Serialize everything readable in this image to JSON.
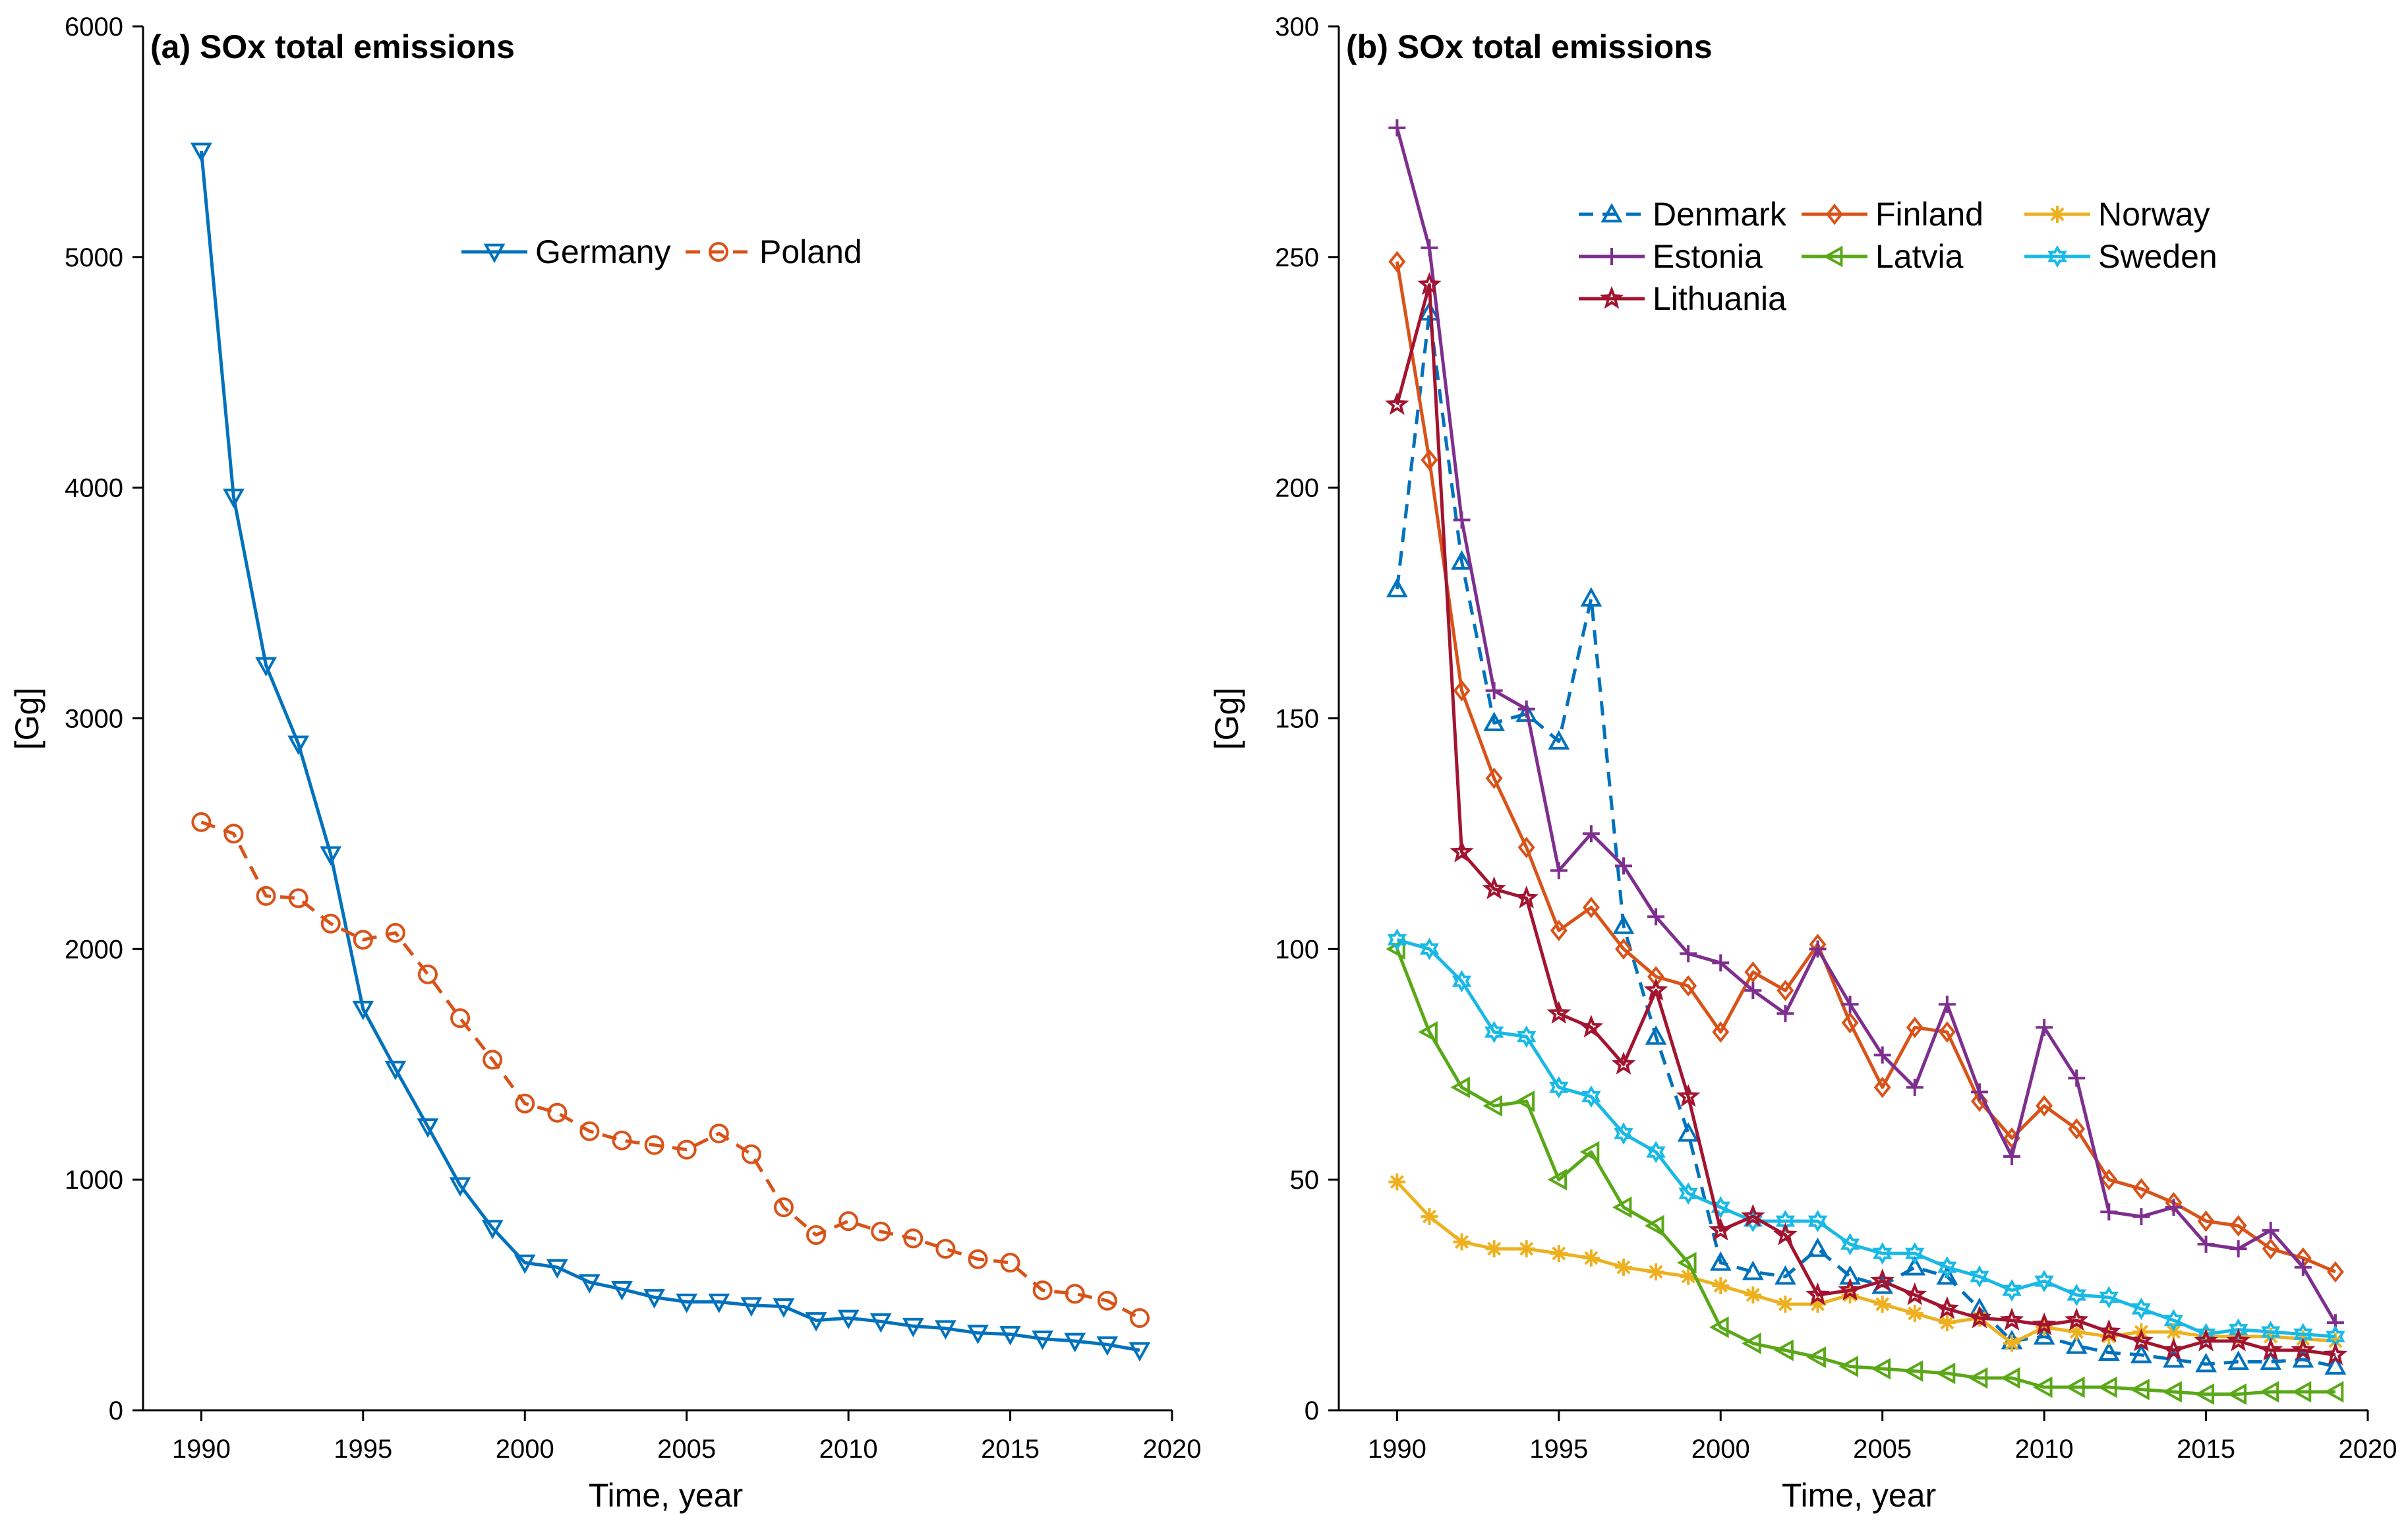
{
  "chart_data": [
    {
      "type": "line",
      "title": "(a) SOx total emissions",
      "xlabel": "Time, year",
      "ylabel": "[Gg]",
      "xlim": [
        1988.2,
        2020
      ],
      "ylim": [
        0,
        6000
      ],
      "xticks": [
        1990,
        1995,
        2000,
        2005,
        2010,
        2015,
        2020
      ],
      "yticks": [
        0,
        1000,
        2000,
        3000,
        4000,
        5000,
        6000
      ],
      "x": [
        1990,
        1991,
        1992,
        1993,
        1994,
        1995,
        1996,
        1997,
        1998,
        1999,
        2000,
        2001,
        2002,
        2003,
        2004,
        2005,
        2006,
        2007,
        2008,
        2009,
        2010,
        2011,
        2012,
        2013,
        2014,
        2015,
        2016,
        2017,
        2018,
        2019
      ],
      "series": [
        {
          "name": "Germany",
          "color": "#0072BD",
          "dash": "solid",
          "marker": "triangle-down",
          "values": [
            5460,
            3960,
            3230,
            2890,
            2410,
            1740,
            1480,
            1230,
            975,
            790,
            640,
            620,
            555,
            525,
            490,
            470,
            470,
            455,
            450,
            390,
            400,
            385,
            365,
            355,
            335,
            330,
            310,
            300,
            285,
            260
          ]
        },
        {
          "name": "Poland",
          "color": "#D95319",
          "dash": "dashed",
          "marker": "circle",
          "values": [
            2550,
            2500,
            2230,
            2220,
            2110,
            2040,
            2070,
            1890,
            1700,
            1520,
            1330,
            1290,
            1210,
            1170,
            1150,
            1130,
            1200,
            1110,
            880,
            760,
            820,
            775,
            745,
            700,
            655,
            640,
            520,
            505,
            475,
            400
          ]
        }
      ],
      "legend": {
        "position": "top-center",
        "columns": 2
      }
    },
    {
      "type": "line",
      "title": "(b) SOx total emissions",
      "xlabel": "Time, year",
      "ylabel": "[Gg]",
      "xlim": [
        1988.2,
        2020
      ],
      "ylim": [
        0,
        300
      ],
      "xticks": [
        1990,
        1995,
        2000,
        2005,
        2010,
        2015,
        2020
      ],
      "yticks": [
        0,
        50,
        100,
        150,
        200,
        250,
        300
      ],
      "x": [
        1990,
        1991,
        1992,
        1993,
        1994,
        1995,
        1996,
        1997,
        1998,
        1999,
        2000,
        2001,
        2002,
        2003,
        2004,
        2005,
        2006,
        2007,
        2008,
        2009,
        2010,
        2011,
        2012,
        2013,
        2014,
        2015,
        2016,
        2017,
        2018,
        2019
      ],
      "series": [
        {
          "name": "Denmark",
          "color": "#0072BD",
          "dash": "dashed",
          "marker": "triangle-up",
          "values": [
            178,
            238,
            184,
            149,
            151,
            145,
            176,
            105,
            81,
            60,
            32,
            30,
            29,
            35,
            29,
            27,
            31,
            29,
            22,
            15,
            16,
            14,
            12.5,
            12,
            11,
            10,
            10.5,
            10.5,
            11,
            9.5
          ]
        },
        {
          "name": "Finland",
          "color": "#D95319",
          "dash": "solid",
          "marker": "diamond",
          "values": [
            249,
            206,
            156,
            137,
            122,
            104,
            109,
            100,
            94,
            92,
            82,
            95,
            91,
            101,
            84,
            70,
            83,
            82,
            67,
            59,
            66,
            61,
            50,
            48,
            45,
            41,
            40,
            35,
            33,
            30
          ]
        },
        {
          "name": "Norway",
          "color": "#EDB120",
          "dash": "solid",
          "marker": "asterisk",
          "values": [
            49.5,
            42,
            36.5,
            35,
            35,
            34,
            33,
            31,
            30,
            29,
            27,
            25,
            23,
            23,
            25,
            23,
            21,
            19,
            20,
            14.5,
            18,
            17,
            16,
            17,
            17,
            16,
            16,
            16,
            15.5,
            15
          ]
        },
        {
          "name": "Estonia",
          "color": "#7E2F8E",
          "dash": "solid",
          "marker": "plus",
          "values": [
            278,
            252,
            193,
            156,
            152,
            117,
            125,
            118,
            107,
            99,
            97,
            91,
            86,
            100,
            88,
            77,
            70,
            88,
            69,
            55,
            83,
            72,
            43,
            42,
            44,
            36,
            35,
            39,
            31,
            19
          ]
        },
        {
          "name": "Latvia",
          "color": "#59A817",
          "dash": "solid",
          "marker": "triangle-left",
          "values": [
            100,
            82,
            70,
            66,
            67,
            50,
            56,
            44,
            40,
            32,
            18,
            14.5,
            13,
            11.5,
            9.5,
            9,
            8.5,
            8,
            7,
            7,
            5,
            5,
            5,
            4.5,
            4,
            3.5,
            3.5,
            4,
            4,
            4
          ]
        },
        {
          "name": "Sweden",
          "color": "#19B9E6",
          "dash": "solid",
          "marker": "hexagram",
          "values": [
            102,
            100,
            93,
            82,
            81,
            70,
            68,
            60,
            56,
            47,
            44,
            41,
            41,
            41,
            36,
            34,
            34,
            31,
            29,
            26,
            28,
            25,
            24.5,
            22,
            19.5,
            16.5,
            17.5,
            17,
            16.5,
            16
          ]
        },
        {
          "name": "Lithuania",
          "color": "#A2142F",
          "dash": "solid",
          "marker": "pentagram",
          "values": [
            218,
            244,
            121,
            113,
            111,
            86,
            83,
            75,
            91,
            68,
            39,
            42,
            38,
            25,
            26,
            28,
            25,
            22,
            20,
            19.5,
            18.5,
            19.5,
            17,
            15,
            13,
            15,
            15,
            13,
            13,
            12
          ]
        }
      ],
      "legend": {
        "position": "top-center",
        "columns": 3
      }
    }
  ]
}
